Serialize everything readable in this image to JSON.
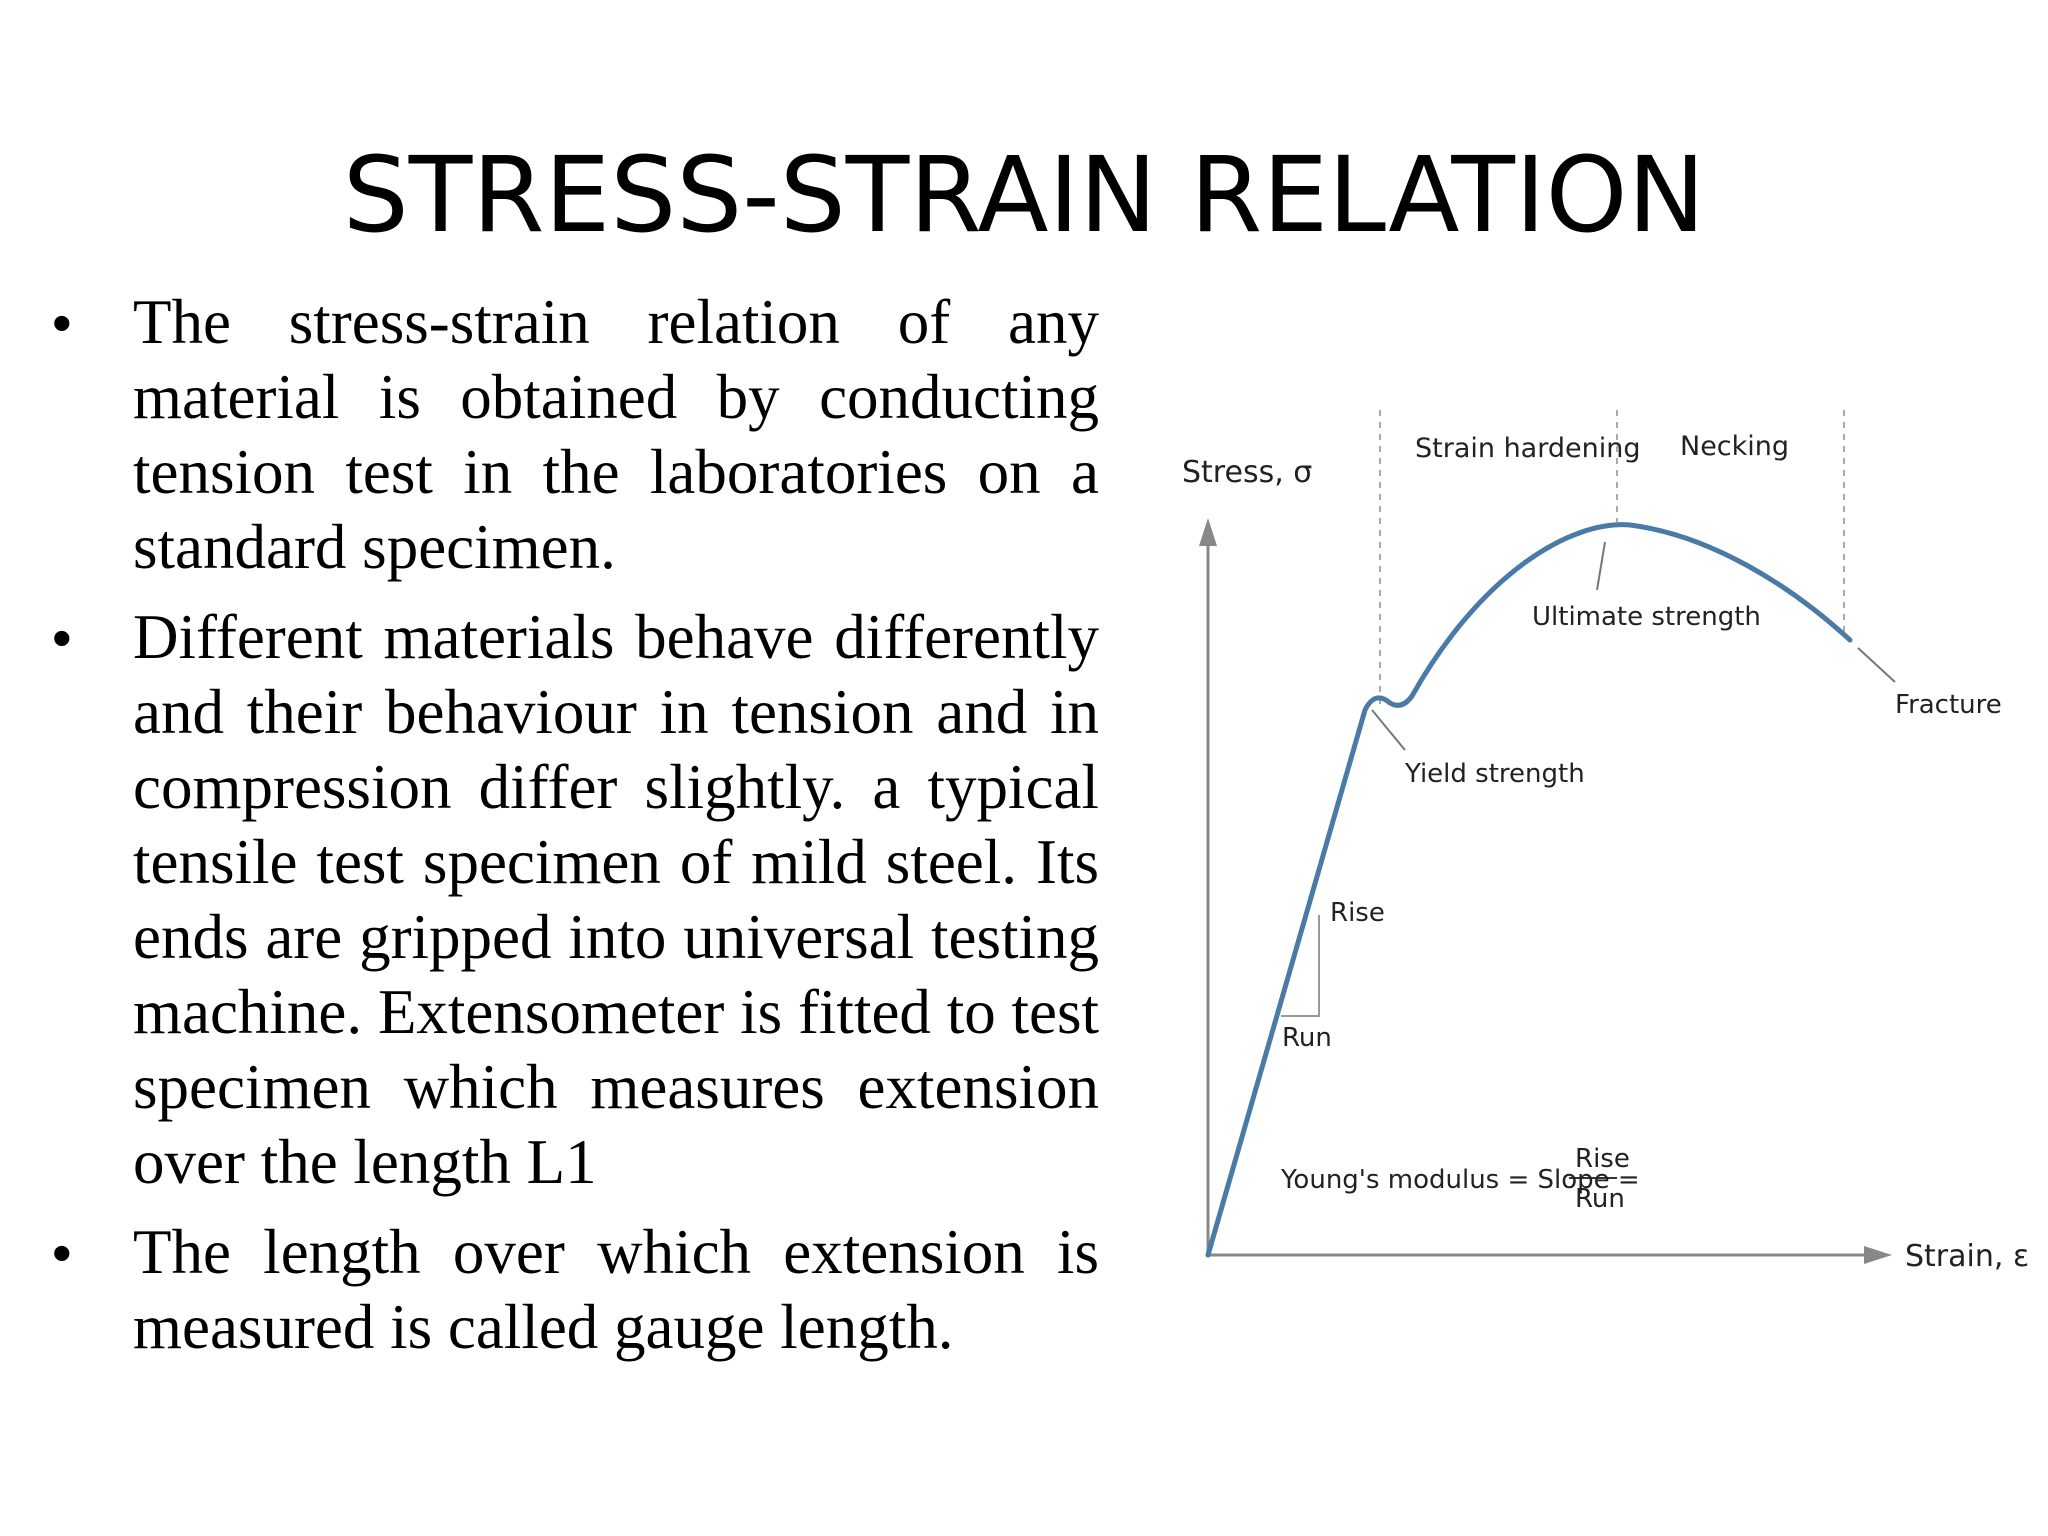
{
  "slide": {
    "title": "STRESS-STRAIN RELATION",
    "bullets": [
      "The stress-strain relation of any material is obtained by conducting tension test in the laboratories on a standard specimen.",
      "Different materials behave differently and their behaviour in tension and in compression differ slightly. a typical tensile test specimen of mild steel. Its ends are gripped into universal testing machine. Extensometer is fitted to test specimen which measures extension over the length L1",
      "The length over which extension is measured is called gauge length."
    ],
    "bullet_symbol": "•"
  },
  "diagram": {
    "y_axis_label": "Stress, σ",
    "x_axis_label": "Strain, ε",
    "region_labels": {
      "strain_hardening": "Strain hardening",
      "necking": "Necking"
    },
    "point_labels": {
      "ultimate_strength": "Ultimate strength",
      "yield_strength": "Yield strength",
      "fracture": "Fracture"
    },
    "slope_labels": {
      "rise": "Rise",
      "run": "Run"
    },
    "formula": {
      "lhs": "Young's modulus = Slope =",
      "numerator": "Rise",
      "denominator": "Run"
    },
    "colors": {
      "curve": "#4a7aa6",
      "axis": "#888888",
      "guide": "#aaaaaa"
    }
  }
}
